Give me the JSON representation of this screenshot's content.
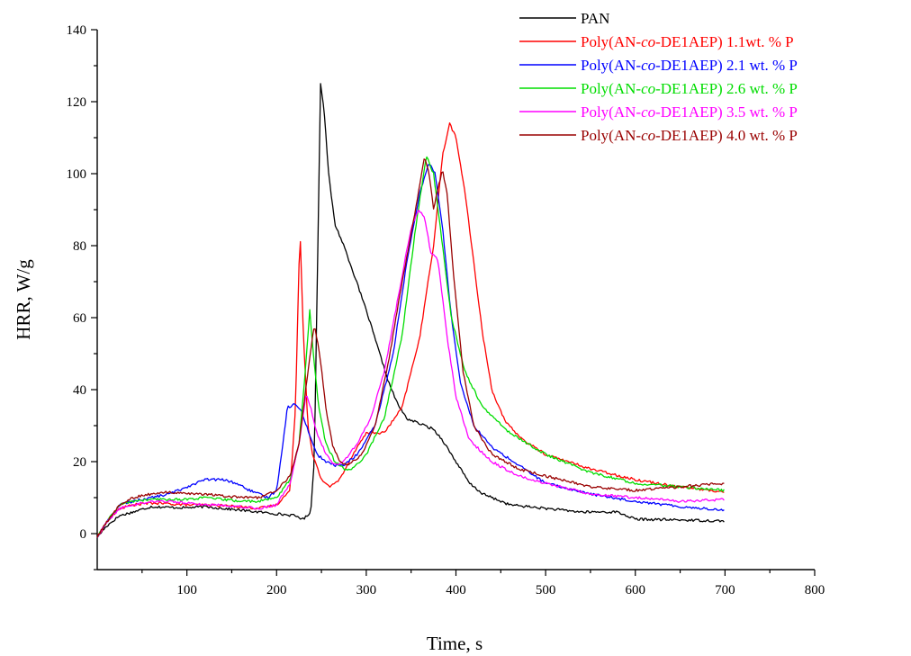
{
  "chart_data": {
    "type": "line",
    "title": "",
    "xlabel": "Time, s",
    "ylabel": "HRR, W/g",
    "xlim": [
      0,
      800
    ],
    "ylim": [
      -10,
      140
    ],
    "xticks": [
      100,
      200,
      300,
      400,
      500,
      600,
      700,
      800
    ],
    "yticks": [
      0,
      20,
      40,
      60,
      80,
      100,
      120,
      140
    ],
    "grid": false,
    "legend_position": "top-right",
    "series": [
      {
        "name": "PAN",
        "legend_parts": [
          "PAN"
        ],
        "color": "#000000",
        "points": [
          [
            0,
            -1
          ],
          [
            10,
            2
          ],
          [
            25,
            5
          ],
          [
            40,
            6
          ],
          [
            60,
            7.5
          ],
          [
            80,
            7.3
          ],
          [
            100,
            7.2
          ],
          [
            120,
            7.5
          ],
          [
            140,
            7
          ],
          [
            160,
            6.5
          ],
          [
            180,
            6
          ],
          [
            200,
            5.5
          ],
          [
            220,
            5
          ],
          [
            230,
            4
          ],
          [
            238,
            6
          ],
          [
            242,
            20
          ],
          [
            246,
            80
          ],
          [
            249,
            125
          ],
          [
            253,
            118
          ],
          [
            258,
            100
          ],
          [
            265,
            86
          ],
          [
            275,
            80
          ],
          [
            285,
            73
          ],
          [
            300,
            62
          ],
          [
            315,
            50
          ],
          [
            325,
            42
          ],
          [
            335,
            36
          ],
          [
            345,
            32
          ],
          [
            355,
            31
          ],
          [
            365,
            30
          ],
          [
            375,
            29
          ],
          [
            385,
            26
          ],
          [
            400,
            20
          ],
          [
            415,
            14
          ],
          [
            430,
            11
          ],
          [
            460,
            8
          ],
          [
            500,
            7
          ],
          [
            540,
            6
          ],
          [
            580,
            6
          ],
          [
            600,
            4
          ],
          [
            650,
            3.8
          ],
          [
            700,
            3.5
          ]
        ]
      },
      {
        "name": "Poly(AN-co-DE1AEP) 1.1wt. % P",
        "legend_parts": [
          "Poly(AN-",
          "co",
          "-DE1AEP) 1.1wt. % P"
        ],
        "color": "#ff0000",
        "points": [
          [
            0,
            -1
          ],
          [
            10,
            3
          ],
          [
            25,
            7
          ],
          [
            40,
            8
          ],
          [
            60,
            8.5
          ],
          [
            80,
            8.3
          ],
          [
            100,
            8
          ],
          [
            120,
            8
          ],
          [
            140,
            7.8
          ],
          [
            160,
            7.5
          ],
          [
            180,
            7
          ],
          [
            200,
            8
          ],
          [
            215,
            12
          ],
          [
            221,
            35
          ],
          [
            226,
            85
          ],
          [
            230,
            55
          ],
          [
            235,
            30
          ],
          [
            240,
            22
          ],
          [
            250,
            15
          ],
          [
            260,
            13
          ],
          [
            270,
            15
          ],
          [
            285,
            22
          ],
          [
            300,
            28
          ],
          [
            320,
            28
          ],
          [
            340,
            35
          ],
          [
            360,
            55
          ],
          [
            375,
            80
          ],
          [
            385,
            105
          ],
          [
            393,
            114
          ],
          [
            400,
            110
          ],
          [
            410,
            95
          ],
          [
            420,
            75
          ],
          [
            430,
            55
          ],
          [
            440,
            40
          ],
          [
            455,
            31
          ],
          [
            475,
            26
          ],
          [
            500,
            22
          ],
          [
            550,
            18
          ],
          [
            600,
            15
          ],
          [
            650,
            13
          ],
          [
            700,
            11.5
          ]
        ]
      },
      {
        "name": "Poly(AN-co-DE1AEP) 2.1 wt. % P",
        "legend_parts": [
          "Poly(AN-",
          "co",
          "-DE1AEP) 2.1 wt. % P"
        ],
        "color": "#0000ff",
        "points": [
          [
            0,
            -1
          ],
          [
            10,
            3
          ],
          [
            25,
            8
          ],
          [
            40,
            9
          ],
          [
            60,
            10
          ],
          [
            80,
            11
          ],
          [
            100,
            13
          ],
          [
            120,
            15
          ],
          [
            140,
            15
          ],
          [
            155,
            14
          ],
          [
            170,
            12
          ],
          [
            190,
            10
          ],
          [
            200,
            12
          ],
          [
            207,
            25
          ],
          [
            212,
            35
          ],
          [
            220,
            36
          ],
          [
            228,
            34
          ],
          [
            236,
            28
          ],
          [
            245,
            22
          ],
          [
            255,
            20
          ],
          [
            265,
            19
          ],
          [
            275,
            19
          ],
          [
            290,
            22
          ],
          [
            310,
            30
          ],
          [
            330,
            50
          ],
          [
            345,
            75
          ],
          [
            360,
            95
          ],
          [
            370,
            103
          ],
          [
            377,
            100
          ],
          [
            385,
            85
          ],
          [
            395,
            60
          ],
          [
            405,
            42
          ],
          [
            420,
            30
          ],
          [
            440,
            24
          ],
          [
            470,
            19
          ],
          [
            500,
            14
          ],
          [
            550,
            11
          ],
          [
            600,
            9
          ],
          [
            650,
            7.5
          ],
          [
            700,
            6.5
          ]
        ]
      },
      {
        "name": "Poly(AN-co-DE1AEP) 2.6 wt. % P",
        "legend_parts": [
          "Poly(AN-",
          "co",
          "-DE1AEP) 2.6 wt. % P"
        ],
        "color": "#00dd00",
        "points": [
          [
            0,
            -1
          ],
          [
            10,
            3
          ],
          [
            25,
            8
          ],
          [
            40,
            9
          ],
          [
            60,
            9.5
          ],
          [
            80,
            9.5
          ],
          [
            100,
            9.5
          ],
          [
            120,
            10
          ],
          [
            140,
            9.5
          ],
          [
            160,
            9
          ],
          [
            180,
            9
          ],
          [
            200,
            10
          ],
          [
            215,
            15
          ],
          [
            225,
            25
          ],
          [
            232,
            45
          ],
          [
            237,
            62
          ],
          [
            241,
            50
          ],
          [
            247,
            35
          ],
          [
            255,
            25
          ],
          [
            265,
            20
          ],
          [
            275,
            18
          ],
          [
            285,
            18
          ],
          [
            300,
            22
          ],
          [
            320,
            32
          ],
          [
            340,
            55
          ],
          [
            355,
            85
          ],
          [
            367,
            105
          ],
          [
            375,
            100
          ],
          [
            385,
            80
          ],
          [
            395,
            60
          ],
          [
            410,
            45
          ],
          [
            430,
            35
          ],
          [
            460,
            28
          ],
          [
            500,
            22
          ],
          [
            550,
            17
          ],
          [
            600,
            14
          ],
          [
            650,
            13
          ],
          [
            700,
            12
          ]
        ]
      },
      {
        "name": "Poly(AN-co-DE1AEP) 3.5 wt. % P",
        "legend_parts": [
          "Poly(AN-",
          "co",
          "-DE1AEP) 3.5 wt. % P"
        ],
        "color": "#ff00ff",
        "points": [
          [
            0,
            -1
          ],
          [
            10,
            3
          ],
          [
            25,
            7
          ],
          [
            40,
            8
          ],
          [
            60,
            9
          ],
          [
            80,
            9
          ],
          [
            100,
            8.5
          ],
          [
            120,
            8
          ],
          [
            140,
            8
          ],
          [
            160,
            7.5
          ],
          [
            180,
            7
          ],
          [
            200,
            8
          ],
          [
            215,
            14
          ],
          [
            225,
            25
          ],
          [
            233,
            39
          ],
          [
            238,
            35
          ],
          [
            245,
            28
          ],
          [
            255,
            22
          ],
          [
            265,
            19
          ],
          [
            275,
            20
          ],
          [
            290,
            25
          ],
          [
            305,
            32
          ],
          [
            320,
            45
          ],
          [
            335,
            65
          ],
          [
            350,
            85
          ],
          [
            358,
            90
          ],
          [
            365,
            88
          ],
          [
            372,
            78
          ],
          [
            380,
            76
          ],
          [
            390,
            55
          ],
          [
            400,
            38
          ],
          [
            415,
            26
          ],
          [
            440,
            20
          ],
          [
            470,
            16
          ],
          [
            500,
            14
          ],
          [
            550,
            11
          ],
          [
            600,
            10
          ],
          [
            650,
            9
          ],
          [
            700,
            9.5
          ]
        ]
      },
      {
        "name": "Poly(AN-co-DE1AEP) 4.0 wt. % P",
        "legend_parts": [
          "Poly(AN-",
          "co",
          "-DE1AEP) 4.0 wt. % P"
        ],
        "color": "#990000",
        "points": [
          [
            0,
            -1
          ],
          [
            10,
            3
          ],
          [
            25,
            8
          ],
          [
            40,
            10
          ],
          [
            60,
            11
          ],
          [
            80,
            11.5
          ],
          [
            100,
            11
          ],
          [
            120,
            11
          ],
          [
            140,
            10.5
          ],
          [
            160,
            10
          ],
          [
            180,
            10
          ],
          [
            200,
            12
          ],
          [
            215,
            16
          ],
          [
            225,
            25
          ],
          [
            235,
            45
          ],
          [
            242,
            58
          ],
          [
            248,
            50
          ],
          [
            255,
            35
          ],
          [
            262,
            25
          ],
          [
            270,
            20
          ],
          [
            280,
            19
          ],
          [
            295,
            22
          ],
          [
            310,
            30
          ],
          [
            325,
            48
          ],
          [
            340,
            70
          ],
          [
            355,
            90
          ],
          [
            365,
            105
          ],
          [
            370,
            100
          ],
          [
            375,
            90
          ],
          [
            380,
            96
          ],
          [
            385,
            101
          ],
          [
            390,
            95
          ],
          [
            398,
            70
          ],
          [
            408,
            45
          ],
          [
            420,
            30
          ],
          [
            440,
            22
          ],
          [
            470,
            18
          ],
          [
            500,
            16
          ],
          [
            550,
            13
          ],
          [
            600,
            12
          ],
          [
            650,
            13
          ],
          [
            700,
            14
          ]
        ]
      }
    ]
  }
}
